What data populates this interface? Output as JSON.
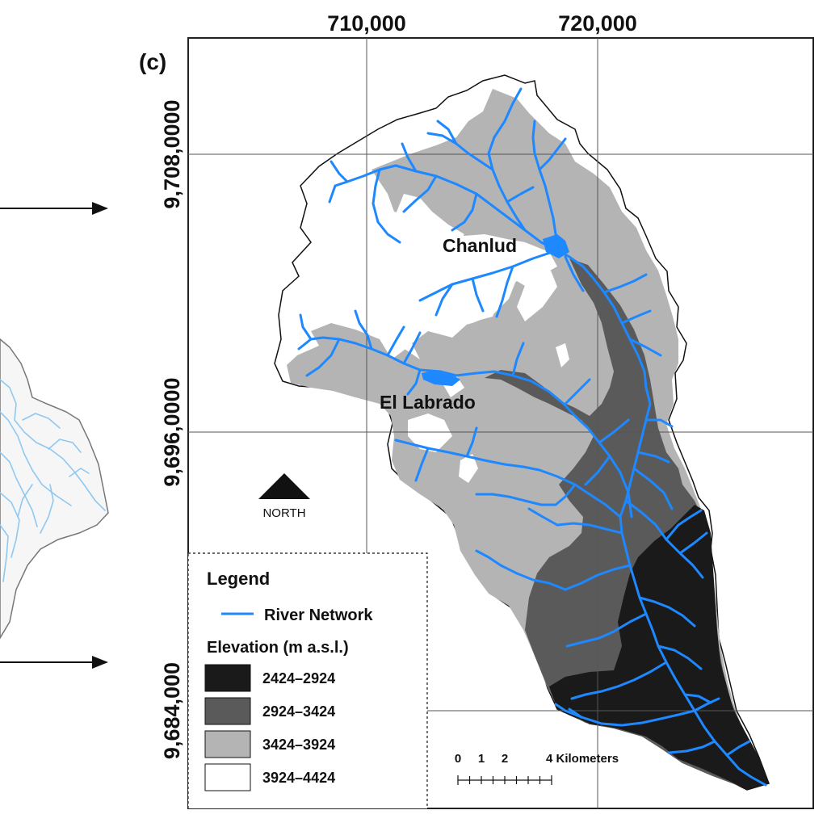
{
  "panel_label": "(c)",
  "x_ticks": [
    "710,000",
    "720,000"
  ],
  "y_ticks": [
    "9,708,0000",
    "9,696,0000",
    "9,684,000"
  ],
  "places": [
    "Chanlud",
    "El Labrado"
  ],
  "north_label": "NORTH",
  "legend": {
    "title": "Legend",
    "river_label": "River Network",
    "elevation_title": "Elevation (m a.s.l.)",
    "classes": [
      {
        "label": "2424–2924",
        "color": "#1a1a1a"
      },
      {
        "label": "2924–3424",
        "color": "#5a5a5a"
      },
      {
        "label": "3424–3924",
        "color": "#b4b4b4"
      },
      {
        "label": "3924–4424",
        "color": "#ffffff"
      }
    ]
  },
  "scale_bar": {
    "labels": [
      "0",
      "1",
      "2",
      "4 Kilometers"
    ]
  },
  "colors": {
    "river": "#1e88ff",
    "left_river": "#8fc8f0",
    "arrow": "#111111"
  }
}
